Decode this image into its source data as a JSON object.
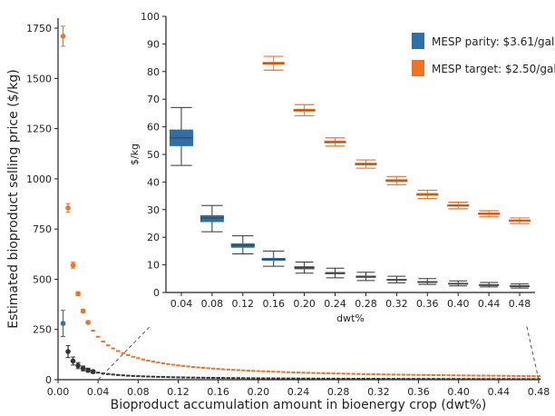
{
  "colors": {
    "parity": "#2e6fa7",
    "target": "#f07324",
    "tail": "#333333",
    "axis": "#222222"
  },
  "chart_data": [
    {
      "id": "main",
      "type": "scatter",
      "xlabel": "Bioproduct accumulation amount in bioenergy crop (dwt%)",
      "ylabel": "Estimated bioproduct selling price ($/kg)",
      "xlim": [
        0,
        0.48
      ],
      "ylim": [
        0,
        1800
      ],
      "x_ticks": [
        "0.00",
        "0.04",
        "0.08",
        "0.12",
        "0.16",
        "0.20",
        "0.24",
        "0.28",
        "0.32",
        "0.36",
        "0.40",
        "0.44",
        "0.48"
      ],
      "y_ticks": [
        "0",
        "250",
        "500",
        "750",
        "1000",
        "1250",
        "1500",
        "1750"
      ],
      "series": [
        {
          "name": "MESP target: $2.50/gal",
          "color_key": "target",
          "points": [
            {
              "x": 0.005,
              "y": 1710,
              "err": 50
            },
            {
              "x": 0.01,
              "y": 855,
              "err": 22
            },
            {
              "x": 0.015,
              "y": 570,
              "err": 15
            },
            {
              "x": 0.02,
              "y": 428,
              "err": 10
            },
            {
              "x": 0.025,
              "y": 342,
              "err": 8
            },
            {
              "x": 0.03,
              "y": 285,
              "err": 6
            }
          ],
          "curve_const": 8.55
        },
        {
          "name": "MESP parity: $3.61/gal",
          "color_key": "parity",
          "points": [
            {
              "x": 0.005,
              "y": 280,
              "err": 65
            }
          ]
        },
        {
          "name": "",
          "color_key": "tail",
          "points": [
            {
              "x": 0.01,
              "y": 140,
              "err": 30
            },
            {
              "x": 0.015,
              "y": 93,
              "err": 20
            },
            {
              "x": 0.02,
              "y": 70,
              "err": 15
            },
            {
              "x": 0.025,
              "y": 56,
              "err": 12
            },
            {
              "x": 0.03,
              "y": 47,
              "err": 10
            },
            {
              "x": 0.035,
              "y": 40,
              "err": 8
            }
          ],
          "curve_const": 1.4
        }
      ]
    },
    {
      "id": "inset",
      "type": "box",
      "xlabel": "dwt%",
      "ylabel": "$/kg",
      "xlim": [
        0.02,
        0.5
      ],
      "ylim": [
        0,
        100
      ],
      "x_ticks": [
        "0.04",
        "0.08",
        "0.12",
        "0.16",
        "0.20",
        "0.24",
        "0.28",
        "0.32",
        "0.36",
        "0.40",
        "0.44",
        "0.48"
      ],
      "y_ticks": [
        "0",
        "10",
        "20",
        "30",
        "40",
        "50",
        "60",
        "70",
        "80",
        "90",
        "100"
      ],
      "legend": [
        {
          "label": "MESP parity: $3.61/gal",
          "color_key": "parity"
        },
        {
          "label": "MESP target: $2.50/gal",
          "color_key": "target"
        }
      ],
      "parity_boxes": [
        {
          "x": 0.04,
          "median": 56,
          "q1": 53,
          "q3": 59,
          "lo": 46,
          "hi": 67
        },
        {
          "x": 0.08,
          "median": 27,
          "q1": 25.5,
          "q3": 28,
          "lo": 22,
          "hi": 31.5
        },
        {
          "x": 0.12,
          "median": 17,
          "q1": 16.2,
          "q3": 17.8,
          "lo": 14,
          "hi": 20.5
        },
        {
          "x": 0.16,
          "median": 12,
          "q1": 11.5,
          "q3": 12.5,
          "lo": 9.5,
          "hi": 15
        }
      ],
      "parity_tail_boxes": [
        {
          "x": 0.2,
          "median": 9,
          "q1": 8.4,
          "q3": 9.5,
          "lo": 7,
          "hi": 11
        },
        {
          "x": 0.24,
          "median": 7,
          "q1": 6.6,
          "q3": 7.4,
          "lo": 5.3,
          "hi": 8.8
        },
        {
          "x": 0.28,
          "median": 5.7,
          "q1": 5.3,
          "q3": 6.1,
          "lo": 4.3,
          "hi": 7.3
        },
        {
          "x": 0.32,
          "median": 4.6,
          "q1": 4.3,
          "q3": 4.9,
          "lo": 3.5,
          "hi": 5.9
        },
        {
          "x": 0.36,
          "median": 3.8,
          "q1": 3.5,
          "q3": 4.1,
          "lo": 2.9,
          "hi": 5
        },
        {
          "x": 0.4,
          "median": 3.2,
          "q1": 2.9,
          "q3": 3.5,
          "lo": 2.4,
          "hi": 4.2
        },
        {
          "x": 0.44,
          "median": 2.7,
          "q1": 2.4,
          "q3": 3.0,
          "lo": 2.0,
          "hi": 3.6
        },
        {
          "x": 0.48,
          "median": 2.3,
          "q1": 2.0,
          "q3": 2.6,
          "lo": 1.6,
          "hi": 3.1
        }
      ],
      "target_boxes": [
        {
          "x": 0.16,
          "median": 83,
          "q1": 82.5,
          "q3": 83.5,
          "lo": 80.5,
          "hi": 85.5
        },
        {
          "x": 0.2,
          "median": 66,
          "q1": 65.5,
          "q3": 66.5,
          "lo": 64,
          "hi": 68
        },
        {
          "x": 0.24,
          "median": 54.5,
          "q1": 54,
          "q3": 55,
          "lo": 53,
          "hi": 56
        },
        {
          "x": 0.28,
          "median": 46.5,
          "q1": 46,
          "q3": 47,
          "lo": 45,
          "hi": 48
        },
        {
          "x": 0.32,
          "median": 40.5,
          "q1": 40,
          "q3": 41,
          "lo": 39,
          "hi": 42
        },
        {
          "x": 0.36,
          "median": 35.5,
          "q1": 35,
          "q3": 36,
          "lo": 34,
          "hi": 37
        },
        {
          "x": 0.4,
          "median": 31.5,
          "q1": 31.1,
          "q3": 31.9,
          "lo": 30.3,
          "hi": 32.7
        },
        {
          "x": 0.44,
          "median": 28.5,
          "q1": 28.1,
          "q3": 28.9,
          "lo": 27.4,
          "hi": 29.6
        },
        {
          "x": 0.48,
          "median": 26,
          "q1": 25.6,
          "q3": 26.4,
          "lo": 25,
          "hi": 27
        }
      ]
    }
  ]
}
